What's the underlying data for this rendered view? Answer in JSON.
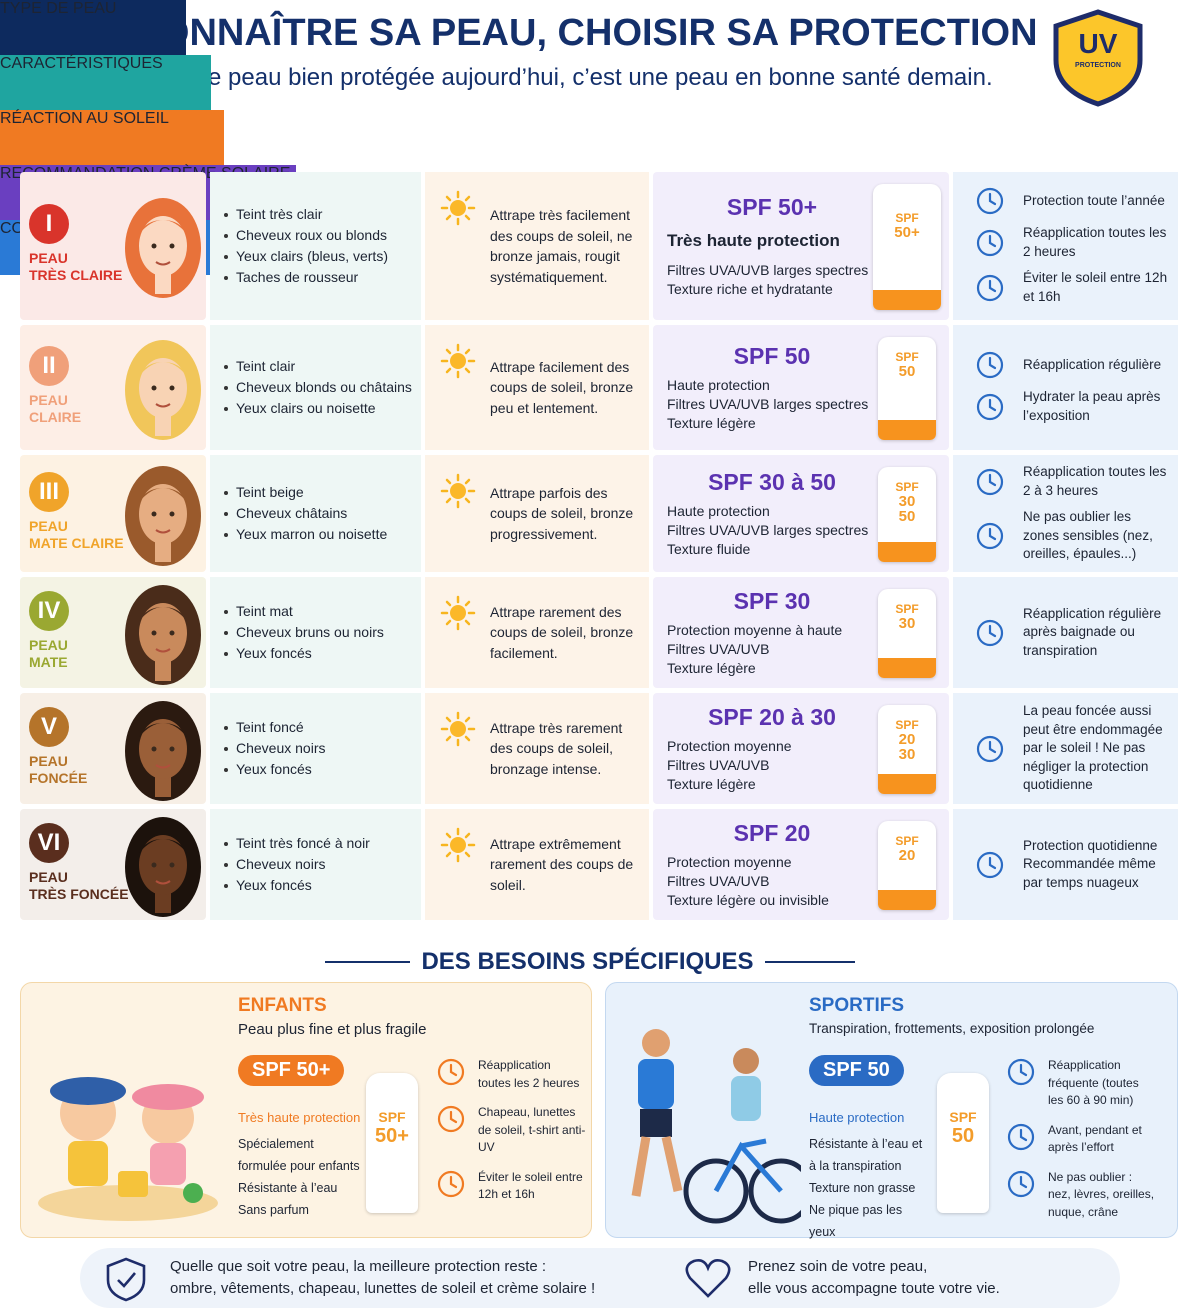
{
  "header": {
    "title": "CONNAÎTRE SA PEAU, CHOISIR SA PROTECTION",
    "subtitle": "Une peau bien protégée aujourd’hui, c’est une peau en bonne santé demain.",
    "badge": {
      "main": "UV",
      "sub": "PROTECTION"
    }
  },
  "table": {
    "columns": [
      "TYPE DE PEAU",
      "CARACTÉRISTIQUES",
      "RÉACTION AU SOLEIL",
      "RECOMMANDATION CRÈME SOLAIRE",
      "CONSEILS CLÉS"
    ],
    "rows": [
      {
        "numeral": "I",
        "type": [
          "PEAU",
          "TRÈS CLAIRE"
        ],
        "characteristics": [
          "Teint très clair",
          "Cheveux roux ou blonds",
          "Yeux clairs (bleus, verts)",
          "Taches de rousseur"
        ],
        "reaction": "Attrape très facilement des coups de soleil, ne bronze jamais, rougit systématiquement.",
        "spf": "SPF 50+",
        "protection": "Très haute protection",
        "details": [
          "Filtres UVA/UVB larges spectres",
          "Texture riche et hydratante"
        ],
        "tube": [
          "SPF",
          "50+"
        ],
        "tips": [
          "Protection toute l’année",
          "Réapplication toutes les 2 heures",
          "Éviter le soleil entre 12h et 16h"
        ]
      },
      {
        "numeral": "II",
        "type": [
          "PEAU",
          "CLAIRE"
        ],
        "characteristics": [
          "Teint clair",
          "Cheveux blonds ou châtains",
          "Yeux clairs ou noisette"
        ],
        "reaction": "Attrape facilement des coups de soleil, bronze peu et lentement.",
        "spf": "SPF 50",
        "protection": "Haute protection",
        "details": [
          "Filtres UVA/UVB larges spectres",
          "Texture légère"
        ],
        "tube": [
          "SPF",
          "50"
        ],
        "tips": [
          "Réapplication régulière",
          "Hydrater la peau après l’exposition"
        ]
      },
      {
        "numeral": "III",
        "type": [
          "PEAU",
          "MATE CLAIRE"
        ],
        "characteristics": [
          "Teint beige",
          "Cheveux châtains",
          "Yeux marron ou noisette"
        ],
        "reaction": "Attrape parfois des coups de soleil, bronze progressivement.",
        "spf": "SPF 30 à 50",
        "protection": "Haute protection",
        "details": [
          "Filtres UVA/UVB larges spectres",
          "Texture fluide"
        ],
        "tube": [
          "SPF",
          "30",
          "50"
        ],
        "tips": [
          "Réapplication toutes les 2 à 3 heures",
          "Ne pas oublier les zones sensibles (nez, oreilles, épaules...)"
        ]
      },
      {
        "numeral": "IV",
        "type": [
          "PEAU",
          "MATE"
        ],
        "characteristics": [
          "Teint mat",
          "Cheveux bruns ou noirs",
          "Yeux foncés"
        ],
        "reaction": "Attrape rarement des coups de soleil, bronze facilement.",
        "spf": "SPF 30",
        "protection": "Protection moyenne à haute",
        "details": [
          "Filtres UVA/UVB",
          "Texture légère"
        ],
        "tube": [
          "SPF",
          "30"
        ],
        "tips": [
          "Réapplication régulière après baignade ou transpiration"
        ]
      },
      {
        "numeral": "V",
        "type": [
          "PEAU",
          "FONCÉE"
        ],
        "characteristics": [
          "Teint foncé",
          "Cheveux noirs",
          "Yeux foncés"
        ],
        "reaction": "Attrape très rarement des coups de soleil, bronzage intense.",
        "spf": "SPF 20 à 30",
        "protection": "Protection moyenne",
        "details": [
          "Filtres UVA/UVB",
          "Texture légère"
        ],
        "tube": [
          "SPF",
          "20",
          "30"
        ],
        "tips": [
          "La peau foncée aussi peut être endommagée par le soleil ! Ne pas négliger la protection quotidienne"
        ]
      },
      {
        "numeral": "VI",
        "type": [
          "PEAU",
          "TRÈS FONCÉE"
        ],
        "characteristics": [
          "Teint très foncé à noir",
          "Cheveux noirs",
          "Yeux foncés"
        ],
        "reaction": "Attrape extrêmement rarement des coups de soleil.",
        "spf": "SPF 20",
        "protection": "Protection moyenne",
        "details": [
          "Filtres UVA/UVB",
          "Texture légère ou invisible"
        ],
        "tube": [
          "SPF",
          "20"
        ],
        "tips": [
          "Protection quotidienne Recommandée même par temps nuageux"
        ]
      }
    ]
  },
  "specific": {
    "title": "DES BESOINS SPÉCIFIQUES",
    "cards": [
      {
        "title": "ENFANTS",
        "subtitle": "Peau plus fine et plus fragile",
        "spf": "SPF 50+",
        "protection": "Très haute protection",
        "details": [
          "Spécialement formulée pour enfants",
          "Résistante à l’eau",
          "Sans parfum"
        ],
        "tube": [
          "SPF",
          "50+"
        ],
        "tips": [
          "Réapplication toutes les 2 heures",
          "Chapeau, lunettes de soleil, t-shirt anti-UV",
          "Éviter le soleil entre 12h et 16h"
        ]
      },
      {
        "title": "SPORTIFS",
        "subtitle": "Transpiration, frottements, exposition prolongée",
        "spf": "SPF 50",
        "protection": "Haute protection",
        "details": [
          "Résistante à l’eau et à la transpiration",
          "Texture non grasse",
          "Ne pique pas les yeux"
        ],
        "tube": [
          "SPF",
          "50"
        ],
        "tips": [
          "Réapplication fréquente (toutes les 60 à 90 min)",
          "Avant, pendant et après l’effort",
          "Ne pas oublier : nez, lèvres, oreilles, nuque, crâne"
        ]
      }
    ]
  },
  "footer": [
    {
      "lines": [
        "Quelle que soit votre peau, la meilleure protection reste :",
        "ombre, vêtements, chapeau, lunettes de soleil et crème solaire !"
      ]
    },
    {
      "lines": [
        "Prenez soin de votre peau,",
        "elle vous accompagne toute votre vie."
      ]
    }
  ]
}
